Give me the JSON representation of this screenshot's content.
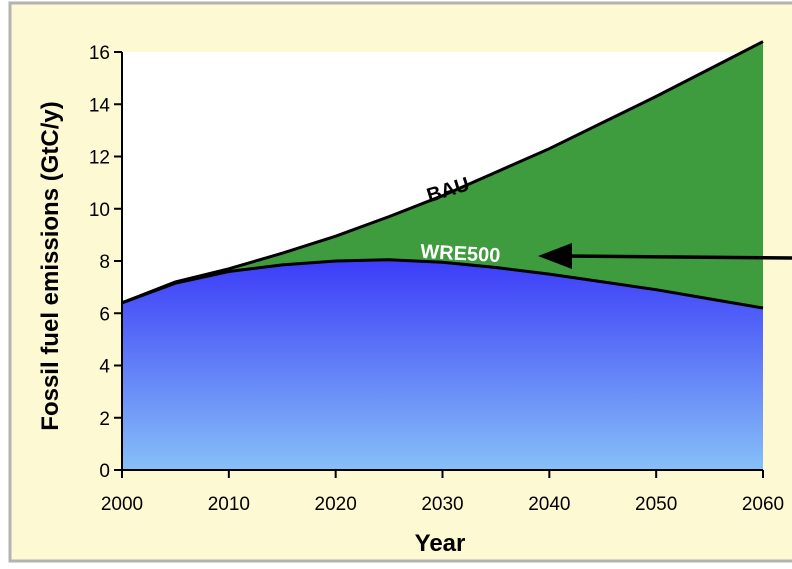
{
  "chart_data": {
    "type": "area",
    "xlabel": "Year",
    "ylabel": "Fossil fuel emissions (GtC/y)",
    "xlim": [
      2000,
      2060
    ],
    "ylim": [
      0,
      16
    ],
    "xticks": [
      "2000",
      "2010",
      "2020",
      "2030",
      "2040",
      "2050",
      "2060"
    ],
    "yticks": [
      "0",
      "2",
      "4",
      "6",
      "8",
      "10",
      "12",
      "14",
      "16"
    ],
    "grid": false,
    "series": [
      {
        "name": "BAU",
        "x": [
          2000,
          2005,
          2010,
          2015,
          2020,
          2025,
          2030,
          2035,
          2040,
          2045,
          2050,
          2055,
          2060
        ],
        "values": [
          6.4,
          7.2,
          7.7,
          8.3,
          8.95,
          9.7,
          10.5,
          11.4,
          12.3,
          13.3,
          14.3,
          15.35,
          16.4
        ]
      },
      {
        "name": "WRE500",
        "x": [
          2000,
          2005,
          2010,
          2015,
          2020,
          2025,
          2030,
          2035,
          2040,
          2045,
          2050,
          2055,
          2060
        ],
        "values": [
          6.4,
          7.15,
          7.6,
          7.85,
          8.0,
          8.05,
          7.95,
          7.75,
          7.5,
          7.2,
          6.9,
          6.55,
          6.2
        ]
      }
    ],
    "colors": {
      "background": "#fdf9d3",
      "frame_border": "#b3b3b3",
      "bau_fill": "#3e9c3e",
      "wre_fill_top": "#3c3cf8",
      "wre_fill_bottom": "#86c0f8",
      "line": "#000000",
      "wre_label": "#ffffff"
    },
    "arrow": {
      "direction": "left",
      "points_to": "WRE500"
    }
  }
}
